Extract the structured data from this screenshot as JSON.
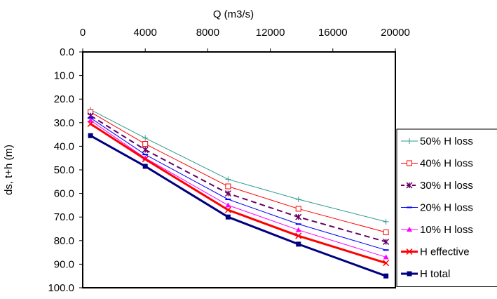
{
  "chart_data": {
    "type": "line",
    "xlabel": "Q (m3/s)",
    "ylabel": "ds, t+h (m)",
    "xlim": [
      0,
      20000
    ],
    "ylim": [
      0,
      100
    ],
    "y_inverted": true,
    "x_axis_position": "top",
    "x_ticks": [
      "0",
      "4000",
      "8000",
      "12000",
      "16000",
      "20000"
    ],
    "y_ticks": [
      "0.0",
      "10.0",
      "20.0",
      "30.0",
      "40.0",
      "50.0",
      "60.0",
      "70.0",
      "80.0",
      "90.0",
      "100.0"
    ],
    "grid": false,
    "legend_position": "right",
    "x": [
      500,
      4000,
      9300,
      13800,
      19400
    ],
    "series": [
      {
        "name": "50% H loss",
        "values": [
          24.5,
          36.5,
          54.0,
          62.5,
          72.0
        ],
        "color": "#2e9a8e",
        "marker": "plus",
        "dash": false,
        "width": 1
      },
      {
        "name": "40% H loss",
        "values": [
          25.5,
          39.0,
          57.0,
          66.5,
          76.5
        ],
        "color": "#ff0000",
        "marker": "square-open",
        "dash": false,
        "width": 1
      },
      {
        "name": "30% H loss",
        "values": [
          27.0,
          41.5,
          60.0,
          70.0,
          80.5
        ],
        "color": "#660066",
        "marker": "asterisk",
        "dash": true,
        "width": 2
      },
      {
        "name": "20% H loss",
        "values": [
          28.0,
          43.5,
          62.5,
          73.0,
          84.0
        ],
        "color": "#0000ff",
        "marker": "dash",
        "dash": false,
        "width": 1
      },
      {
        "name": "10% H loss",
        "values": [
          29.0,
          45.0,
          65.0,
          75.5,
          87.0
        ],
        "color": "#ff00ff",
        "marker": "triangle",
        "dash": false,
        "width": 1
      },
      {
        "name": "H effective",
        "values": [
          30.5,
          45.5,
          67.0,
          78.0,
          89.5
        ],
        "color": "#ff0000",
        "marker": "x",
        "dash": false,
        "width": 3
      },
      {
        "name": "H total",
        "values": [
          35.5,
          48.5,
          70.0,
          81.5,
          95.0
        ],
        "color": "#000080",
        "marker": "square-filled",
        "dash": false,
        "width": 3
      }
    ]
  }
}
